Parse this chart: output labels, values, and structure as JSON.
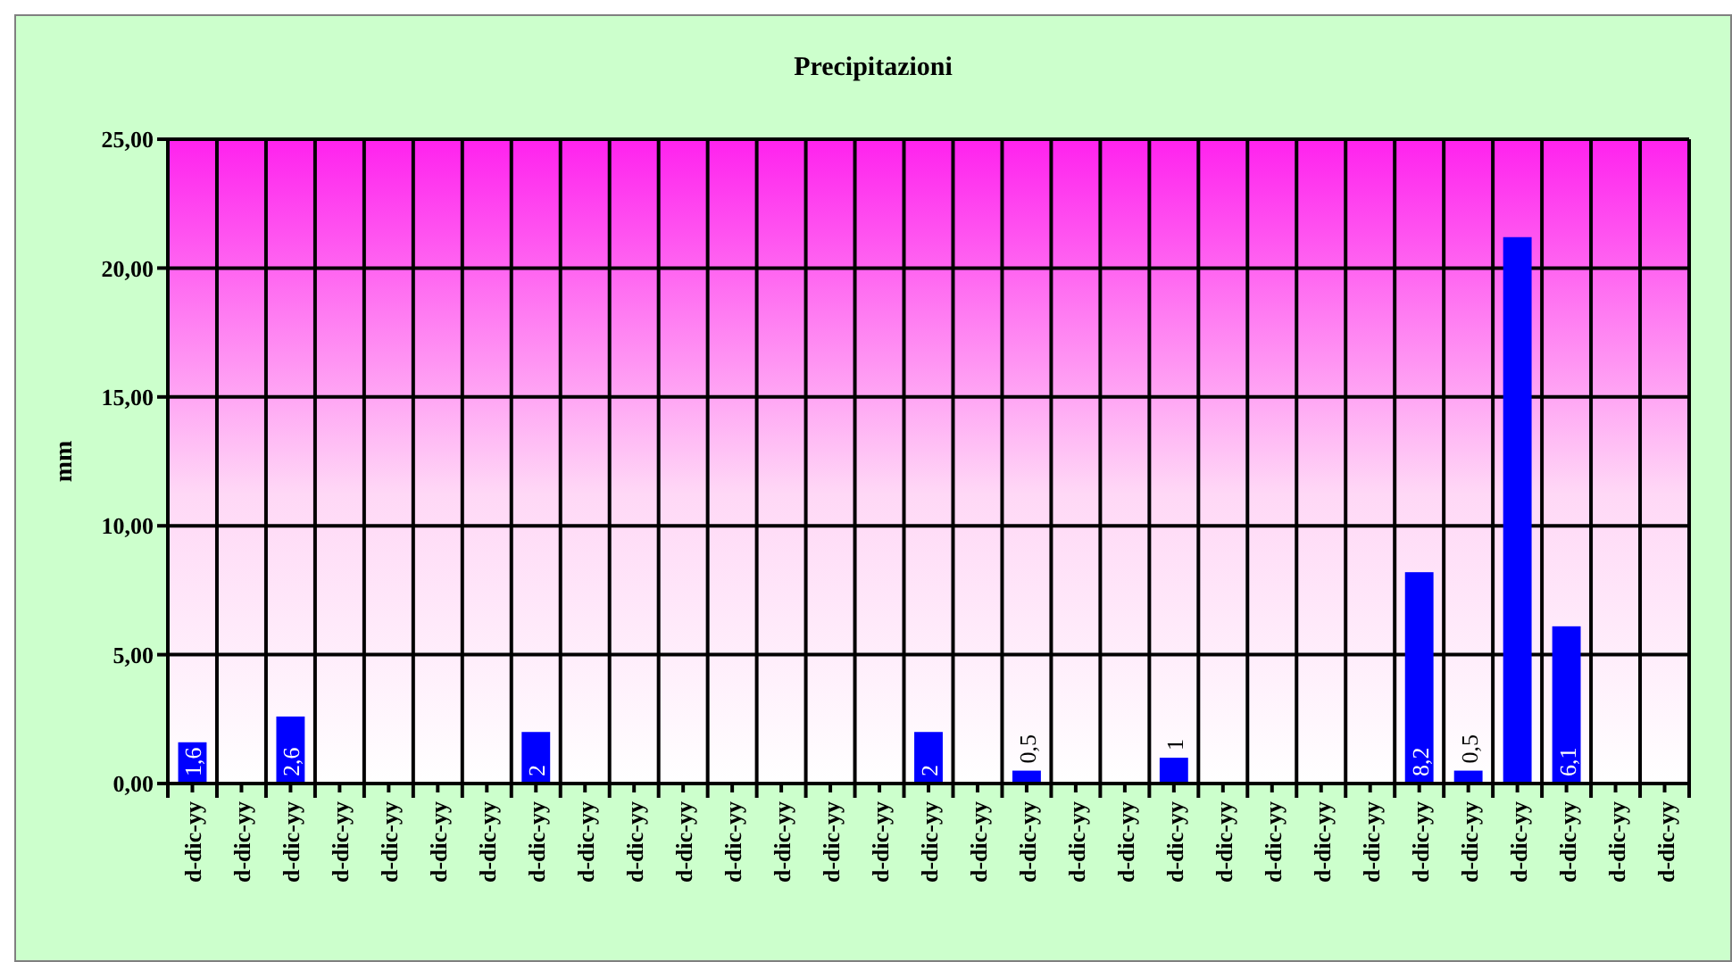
{
  "chart_data": {
    "type": "bar",
    "title": "Precipitazioni",
    "ylabel": "mm",
    "categories": [
      "d-dic-yy",
      "d-dic-yy",
      "d-dic-yy",
      "d-dic-yy",
      "d-dic-yy",
      "d-dic-yy",
      "d-dic-yy",
      "d-dic-yy",
      "d-dic-yy",
      "d-dic-yy",
      "d-dic-yy",
      "d-dic-yy",
      "d-dic-yy",
      "d-dic-yy",
      "d-dic-yy",
      "d-dic-yy",
      "d-dic-yy",
      "d-dic-yy",
      "d-dic-yy",
      "d-dic-yy",
      "d-dic-yy",
      "d-dic-yy",
      "d-dic-yy",
      "d-dic-yy",
      "d-dic-yy",
      "d-dic-yy",
      "d-dic-yy",
      "d-dic-yy",
      "d-dic-yy",
      "d-dic-yy",
      "d-dic-yy"
    ],
    "values": [
      1.6,
      0,
      2.6,
      0,
      0,
      0,
      0,
      2,
      0,
      0,
      0,
      0,
      0,
      0,
      0,
      2,
      0,
      0.5,
      0,
      0,
      1,
      0,
      0,
      0,
      0,
      8.2,
      0.5,
      21.2,
      6.1,
      0,
      0
    ],
    "value_labels": [
      "1,6",
      null,
      "2,6",
      null,
      null,
      null,
      null,
      "2",
      null,
      null,
      null,
      null,
      null,
      null,
      null,
      "2",
      null,
      "0,5",
      null,
      null,
      "1",
      null,
      null,
      null,
      null,
      "8,2",
      "0,5",
      null,
      "6,1",
      null,
      null
    ],
    "color": "#0000ff",
    "ylim": [
      0,
      25
    ],
    "yticks": [
      {
        "value": 0,
        "label": "0,00"
      },
      {
        "value": 5,
        "label": "5,00"
      },
      {
        "value": 10,
        "label": "10,00"
      },
      {
        "value": 15,
        "label": "15,00"
      },
      {
        "value": 20,
        "label": "20,00"
      },
      {
        "value": 25,
        "label": "25,00"
      }
    ],
    "grid": true
  }
}
